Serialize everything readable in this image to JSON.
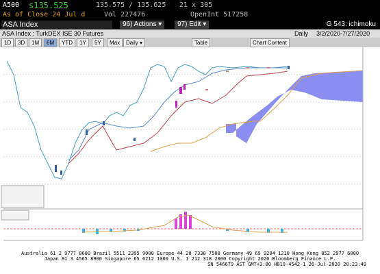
{
  "header": {
    "ticker": "A500",
    "last": "s135.525",
    "bid_ask": "135.575 / 135.625",
    "size": "21 x 305",
    "as_of": "As of Close 24 Jul d",
    "volume": "Vol 227476",
    "open_interest": "OpenInt 517258"
  },
  "command_bar": {
    "security": "ASA Index",
    "actions": "96) Actions ▾",
    "edit": "97) Edit ▾",
    "function": "G 543: ichimoku"
  },
  "subtitle": {
    "name": "ASA Index : TurkDEX ISE 30 Futures",
    "period": "Daily",
    "range": "3/2/2020-7/27/2020"
  },
  "toolbar": {
    "buttons": [
      "1D",
      "3D",
      "1M",
      "6M",
      "YTD",
      "1Y",
      "5Y",
      "Max",
      "Daily ▾",
      "Table",
      "Chart Content"
    ]
  },
  "footer": {
    "line1": "Australia 61 2 9777 8600 Brazil 5511 2395 9000 Europe 44 20 7330 7500 Germany 49 69 9204 1210 Hong Kong 852 2977 6000",
    "line2": "Japan 81 3 4565 8900      Singapore 65 6212 1000      U.S. 1 212 318 2000      Copyright 2020 Bloomberg Finance L.P.",
    "line3": "SN 546679 AST  GMT+3:00 H819-4542-1 26-Jul-2020 20:23:49"
  }
}
